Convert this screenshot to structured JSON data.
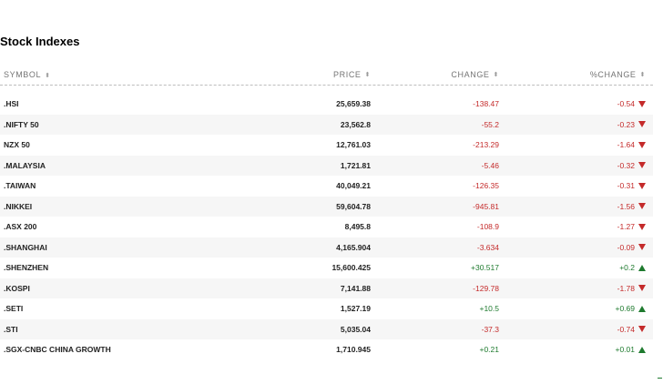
{
  "title": "Stock Indexes",
  "headers": {
    "symbol": "SYMBOL",
    "price": "PRICE",
    "change": "CHANGE",
    "pct_change": "%CHANGE"
  },
  "sort_glyph": "⬍",
  "rows": [
    {
      "symbol": ".HSI",
      "price": "25,659.38",
      "change": "-138.47",
      "pct": "-0.54",
      "dir": "down"
    },
    {
      "symbol": ".NIFTY 50",
      "price": "23,562.8",
      "change": "-55.2",
      "pct": "-0.23",
      "dir": "down"
    },
    {
      "symbol": "NZX 50",
      "price": "12,761.03",
      "change": "-213.29",
      "pct": "-1.64",
      "dir": "down"
    },
    {
      "symbol": ".MALAYSIA",
      "price": "1,721.81",
      "change": "-5.46",
      "pct": "-0.32",
      "dir": "down"
    },
    {
      "symbol": ".TAIWAN",
      "price": "40,049.21",
      "change": "-126.35",
      "pct": "-0.31",
      "dir": "down"
    },
    {
      "symbol": ".NIKKEI",
      "price": "59,604.78",
      "change": "-945.81",
      "pct": "-1.56",
      "dir": "down"
    },
    {
      "symbol": ".ASX 200",
      "price": "8,495.8",
      "change": "-108.9",
      "pct": "-1.27",
      "dir": "down"
    },
    {
      "symbol": ".SHANGHAI",
      "price": "4,165.904",
      "change": "-3.634",
      "pct": "-0.09",
      "dir": "down"
    },
    {
      "symbol": ".SHENZHEN",
      "price": "15,600.425",
      "change": "+30.517",
      "pct": "+0.2",
      "dir": "up"
    },
    {
      "symbol": ".KOSPI",
      "price": "7,141.88",
      "change": "-129.78",
      "pct": "-1.78",
      "dir": "down"
    },
    {
      "symbol": ".SETI",
      "price": "1,527.19",
      "change": "+10.5",
      "pct": "+0.69",
      "dir": "up"
    },
    {
      "symbol": ".STI",
      "price": "5,035.04",
      "change": "-37.3",
      "pct": "-0.74",
      "dir": "down"
    },
    {
      "symbol": ".SGX-CNBC CHINA GROWTH",
      "price": "1,710.945",
      "change": "+0.21",
      "pct": "+0.01",
      "dir": "up"
    }
  ],
  "colors": {
    "negative": "#c42a2a",
    "positive": "#1e7a2e"
  }
}
